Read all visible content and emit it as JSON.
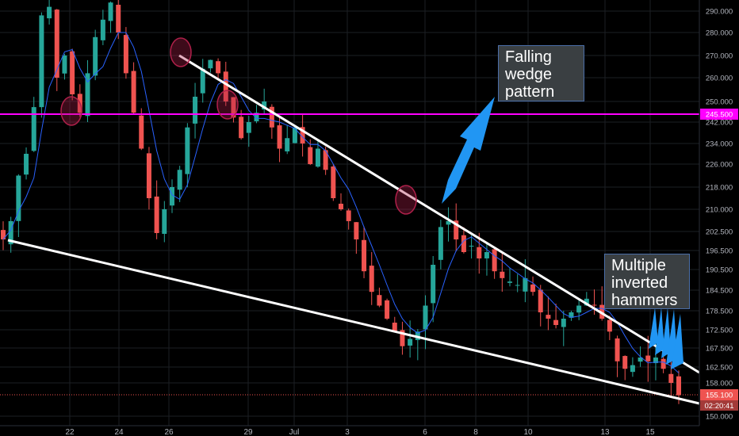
{
  "chart_data": {
    "type": "candlestick",
    "price_axis_ticks": [
      "150.000",
      "155.100",
      "158.000",
      "162.500",
      "167.500",
      "172.500",
      "178.500",
      "184.500",
      "190.500",
      "196.500",
      "202.500",
      "210.000",
      "218.000",
      "226.000",
      "234.000",
      "242.000",
      "245.500",
      "250.000",
      "260.000",
      "270.000",
      "280.000",
      "290.000"
    ],
    "time_axis_ticks": [
      "22",
      "24",
      "26",
      "29",
      "Jul",
      "3",
      "6",
      "8",
      "10",
      "13",
      "15"
    ],
    "horizontal_level": "245.500",
    "current_price": "155.100",
    "countdown": "02:20:41",
    "colors": {
      "up": "#26a69a",
      "down": "#ef5350",
      "ma": "#2962ff",
      "level": "#ff00ff",
      "trendline": "#ffffff",
      "arrow": "#2196f3",
      "circle": "#b0204a"
    },
    "annotations": [
      {
        "lines": [
          "Falling",
          "wedge",
          "pattern"
        ]
      },
      {
        "lines": [
          "Multiple",
          "inverted",
          "hammers"
        ]
      }
    ],
    "series_path": [
      [
        0,
        200
      ],
      [
        1,
        206
      ],
      [
        2,
        222
      ],
      [
        3,
        230
      ],
      [
        4,
        248
      ],
      [
        5,
        288
      ],
      [
        6,
        292
      ],
      [
        7,
        260
      ],
      [
        8,
        270
      ],
      [
        9,
        253
      ],
      [
        10,
        246
      ],
      [
        11,
        262
      ],
      [
        12,
        278
      ],
      [
        13,
        286
      ],
      [
        14,
        294
      ],
      [
        15,
        280
      ],
      [
        16,
        262
      ],
      [
        17,
        246
      ],
      [
        18,
        232
      ],
      [
        19,
        214
      ],
      [
        20,
        202
      ],
      [
        21,
        210
      ],
      [
        22,
        218
      ],
      [
        23,
        224
      ],
      [
        24,
        240
      ],
      [
        25,
        252
      ],
      [
        26,
        264
      ],
      [
        27,
        268
      ],
      [
        28,
        262
      ],
      [
        29,
        250
      ],
      [
        30,
        244
      ],
      [
        31,
        236
      ],
      [
        32,
        242
      ],
      [
        33,
        246
      ],
      [
        34,
        250
      ],
      [
        35,
        240
      ],
      [
        36,
        232
      ],
      [
        37,
        236
      ],
      [
        38,
        240
      ],
      [
        39,
        234
      ],
      [
        40,
        226
      ],
      [
        41,
        232
      ],
      [
        42,
        224
      ],
      [
        43,
        214
      ],
      [
        44,
        210
      ],
      [
        45,
        206
      ],
      [
        46,
        200
      ],
      [
        47,
        190
      ],
      [
        48,
        184
      ],
      [
        49,
        180
      ],
      [
        50,
        176
      ],
      [
        51,
        172
      ],
      [
        52,
        168
      ],
      [
        53,
        170
      ],
      [
        54,
        172
      ],
      [
        55,
        180
      ],
      [
        56,
        192
      ],
      [
        57,
        204
      ],
      [
        58,
        206
      ],
      [
        59,
        200
      ],
      [
        60,
        196
      ],
      [
        61,
        198
      ],
      [
        62,
        194
      ],
      [
        63,
        196
      ],
      [
        64,
        190
      ],
      [
        65,
        188
      ],
      [
        66,
        187
      ],
      [
        67,
        186
      ],
      [
        68,
        188
      ],
      [
        69,
        184
      ],
      [
        70,
        178
      ],
      [
        71,
        176
      ],
      [
        72,
        174
      ],
      [
        73,
        176
      ],
      [
        74,
        178
      ],
      [
        75,
        180
      ],
      [
        76,
        182
      ],
      [
        77,
        180
      ],
      [
        78,
        176
      ],
      [
        79,
        172
      ],
      [
        80,
        164
      ],
      [
        81,
        162
      ],
      [
        82,
        163
      ],
      [
        83,
        165
      ],
      [
        84,
        164
      ],
      [
        85,
        165
      ],
      [
        86,
        162
      ],
      [
        87,
        158
      ],
      [
        88,
        155
      ]
    ]
  }
}
